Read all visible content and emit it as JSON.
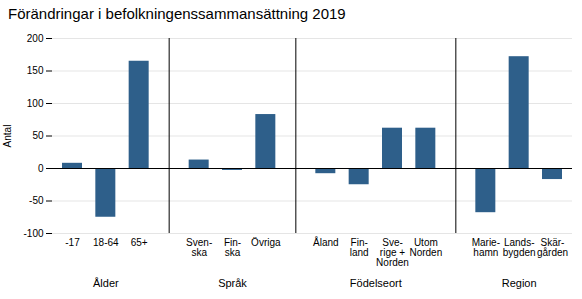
{
  "chart_data": {
    "type": "bar",
    "title": "Förändringar i befolkningenssammansättning 2019",
    "ylabel": "Antal",
    "categories": [
      "-17",
      "18-64",
      "65+",
      "Sven-\nska",
      "Fin-\nska",
      "Övriga",
      "Åland",
      "Fin-\nland",
      "Sve-\nrige +\nNorden",
      "Utom\nNorden",
      "Marie-\nhamn",
      "Lands-\nbygden",
      "Skär-\ngården"
    ],
    "values": [
      8,
      -75,
      165,
      13,
      -3,
      83,
      -8,
      -25,
      62,
      62,
      -68,
      172,
      -17
    ],
    "groups": [
      {
        "label": "Ålder",
        "categories": [
          "-17",
          "18-64",
          "65+"
        ]
      },
      {
        "label": "Språk",
        "categories": [
          "Sven-\nska",
          "Fin-\nska",
          "Övriga"
        ]
      },
      {
        "label": "Födelseort",
        "categories": [
          "Åland",
          "Fin-\nland",
          "Sve-\nrige +\nNorden",
          "Utom\nNorden"
        ]
      },
      {
        "label": "Region",
        "categories": [
          "Marie-\nhamn",
          "Lands-\nbygden",
          "Skär-\ngården"
        ]
      }
    ],
    "color": "#2E5F8A",
    "ylim": [
      -100,
      200
    ],
    "yticks": [
      -100,
      -50,
      0,
      50,
      100,
      150,
      200
    ],
    "grid": true
  }
}
